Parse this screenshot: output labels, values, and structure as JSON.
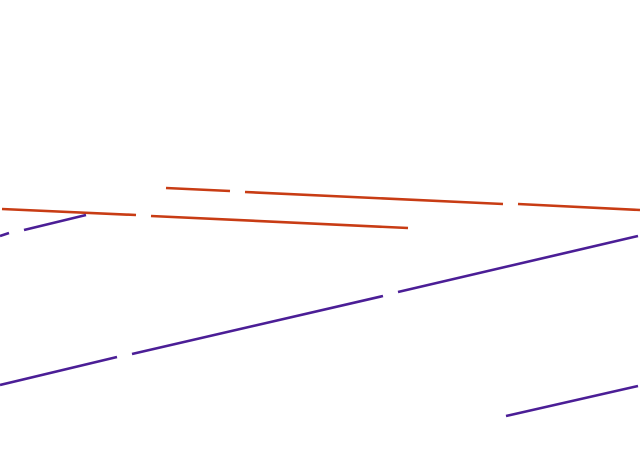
{
  "scene": {
    "background": "#ffffff",
    "colors": {
      "orange": "#c83c14",
      "purple": "#4b1e96"
    }
  }
}
